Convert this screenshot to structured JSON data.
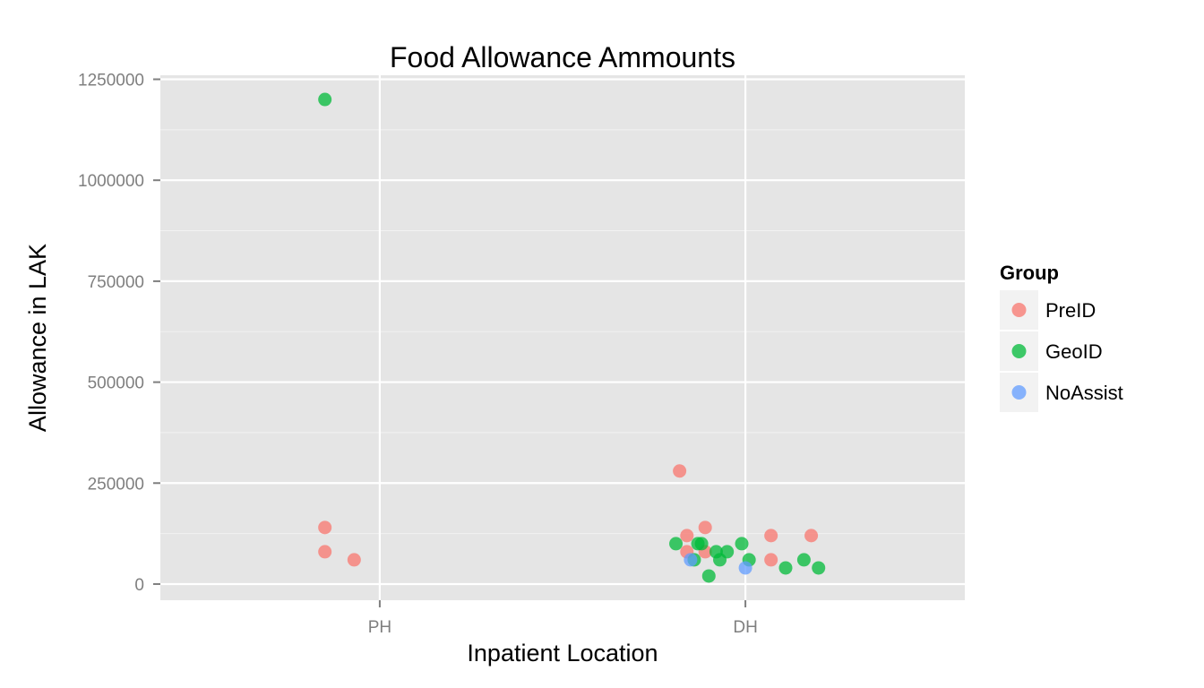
{
  "chart_data": {
    "type": "scatter",
    "title": "Food Allowance Ammounts",
    "xlabel": "Inpatient Location",
    "ylabel": "Allowance in LAK",
    "categories": [
      "PH",
      "DH"
    ],
    "y_ticks": [
      0,
      250000,
      500000,
      750000,
      1000000,
      1250000
    ],
    "y_tick_labels": [
      "0",
      "250000",
      "500000",
      "750000",
      "1000000",
      "1250000"
    ],
    "ylim": [
      -40000,
      1260000
    ],
    "xlim": [
      0.4,
      2.6
    ],
    "grid": true,
    "jitter": true,
    "legend": {
      "title": "Group",
      "placement": "right"
    },
    "series": [
      {
        "name": "PreID",
        "color": "#F8766D",
        "points": [
          {
            "x": 0.85,
            "y": 140000
          },
          {
            "x": 0.85,
            "y": 80000
          },
          {
            "x": 0.93,
            "y": 60000
          },
          {
            "x": 1.82,
            "y": 280000
          },
          {
            "x": 1.84,
            "y": 120000
          },
          {
            "x": 1.84,
            "y": 80000
          },
          {
            "x": 1.89,
            "y": 140000
          },
          {
            "x": 1.89,
            "y": 80000
          },
          {
            "x": 2.07,
            "y": 120000
          },
          {
            "x": 2.07,
            "y": 60000
          },
          {
            "x": 2.18,
            "y": 120000
          }
        ]
      },
      {
        "name": "GeoID",
        "color": "#00BA38",
        "points": [
          {
            "x": 0.85,
            "y": 1200000
          },
          {
            "x": 1.81,
            "y": 100000
          },
          {
            "x": 1.86,
            "y": 60000
          },
          {
            "x": 1.87,
            "y": 100000
          },
          {
            "x": 1.88,
            "y": 100000
          },
          {
            "x": 1.9,
            "y": 20000
          },
          {
            "x": 1.92,
            "y": 80000
          },
          {
            "x": 1.93,
            "y": 60000
          },
          {
            "x": 1.95,
            "y": 80000
          },
          {
            "x": 1.99,
            "y": 100000
          },
          {
            "x": 2.01,
            "y": 60000
          },
          {
            "x": 2.11,
            "y": 40000
          },
          {
            "x": 2.16,
            "y": 60000
          },
          {
            "x": 2.2,
            "y": 40000
          }
        ]
      },
      {
        "name": "NoAssist",
        "color": "#619CFF",
        "points": [
          {
            "x": 1.85,
            "y": 60000
          },
          {
            "x": 2.0,
            "y": 40000
          }
        ]
      }
    ]
  },
  "colors": {
    "panel_background": "#E5E5E5",
    "grid_major": "#FFFFFF",
    "grid_minor": "#F2F2F2",
    "legend_key_background": "#F2F2F2"
  }
}
